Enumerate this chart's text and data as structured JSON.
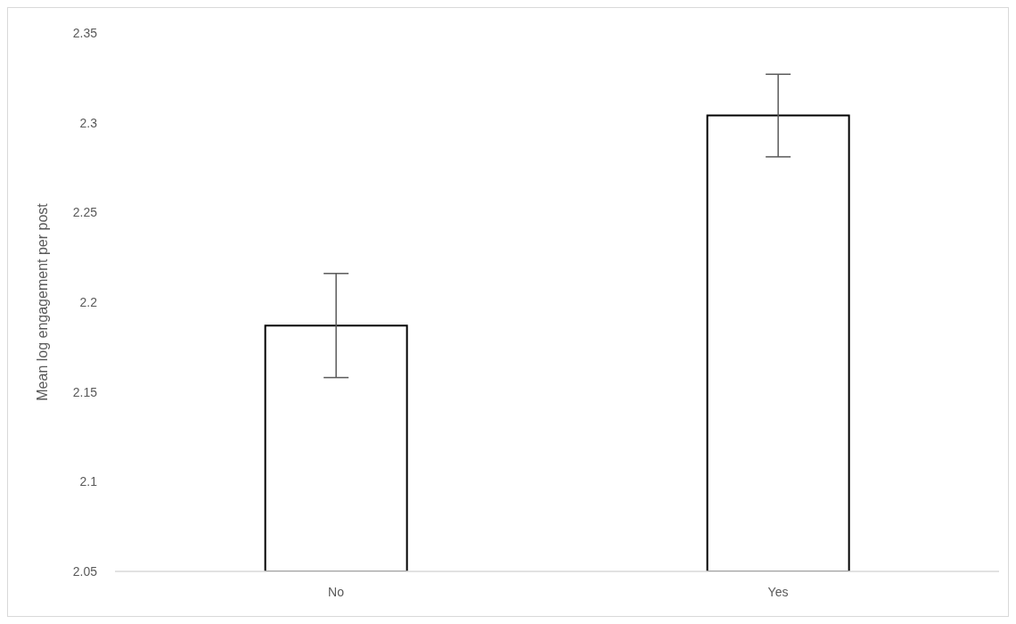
{
  "chart_data": {
    "type": "bar",
    "ylabel": "Mean log engagement per post",
    "categories": [
      "No",
      "Yes"
    ],
    "values": [
      2.187,
      2.304
    ],
    "errors": [
      0.029,
      0.023
    ],
    "color": "#ffffff",
    "ylim": [
      2.05,
      2.35
    ],
    "yticks": [
      2.05,
      2.1,
      2.15,
      2.2,
      2.25,
      2.3,
      2.35
    ],
    "grid": false,
    "legend": false
  }
}
